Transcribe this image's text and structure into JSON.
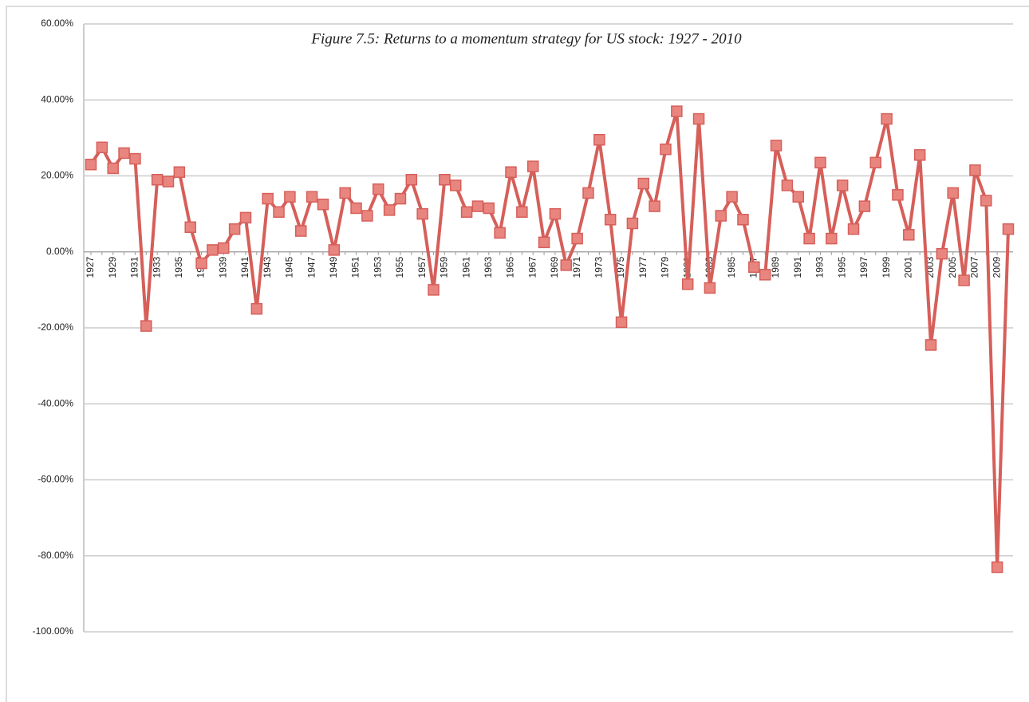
{
  "chart_data": {
    "type": "line",
    "title": "Figure 7.5: Returns to a momentum strategy for US stock: 1927 - 2010",
    "categories": [
      "1927",
      null,
      "1929",
      null,
      "1931",
      null,
      "1933",
      null,
      "1935",
      null,
      "1937",
      null,
      "1939",
      null,
      "1941",
      null,
      "1943",
      null,
      "1945",
      null,
      "1947",
      null,
      "1949",
      null,
      "1951",
      null,
      "1953",
      null,
      "1955",
      null,
      "1957",
      null,
      "1959",
      null,
      "1961",
      null,
      "1963",
      null,
      "1965",
      null,
      "1967",
      null,
      "1969",
      null,
      "1971",
      null,
      "1973",
      null,
      "1975",
      null,
      "1977",
      null,
      "1979",
      null,
      "1981",
      null,
      "1983",
      null,
      "1985",
      null,
      "1987",
      null,
      "1989",
      null,
      "1991",
      null,
      "1993",
      null,
      "1995",
      null,
      "1997",
      null,
      "1999",
      null,
      "2001",
      null,
      "2003",
      null,
      "2005",
      null,
      "2007",
      null,
      "2009",
      null
    ],
    "series": [
      {
        "color": "#d65f5a",
        "marker_color": "#e9857f",
        "values": [
          23,
          27.5,
          22,
          26,
          24.5,
          -19.5,
          19,
          18.5,
          21,
          6.5,
          -3,
          0.5,
          1,
          6,
          9,
          -15,
          14,
          10.5,
          14.5,
          5.5,
          14.5,
          12.5,
          0.5,
          15.5,
          11.5,
          9.5,
          16.5,
          11,
          14,
          19,
          10,
          -10,
          19,
          17.5,
          10.5,
          12,
          11.5,
          5,
          21,
          10.5,
          22.5,
          2.5,
          10,
          -3.5,
          3.5,
          15.5,
          29.5,
          8.5,
          -18.5,
          7.5,
          18,
          12,
          27,
          37,
          -8.5,
          35,
          -9.5,
          9.5,
          14.5,
          8.5,
          -4,
          -6,
          28,
          17.5,
          14.5,
          3.5,
          23.5,
          3.5,
          17.5,
          6,
          12,
          23.5,
          35,
          15,
          4.5,
          25.5,
          -24.5,
          -0.5,
          15.5,
          -7.5,
          21.5,
          13.5,
          -83,
          6
        ]
      }
    ],
    "ylim": [
      -100,
      60
    ],
    "yticks": [
      {
        "value": -100,
        "label": "-100.00%"
      },
      {
        "value": -80,
        "label": "-80.00%"
      },
      {
        "value": -60,
        "label": "-60.00%"
      },
      {
        "value": -40,
        "label": "-40.00%"
      },
      {
        "value": -20,
        "label": "-20.00%"
      },
      {
        "value": 0,
        "label": "0.00%"
      },
      {
        "value": 20,
        "label": "20.00%"
      },
      {
        "value": 40,
        "label": "40.00%"
      },
      {
        "value": 60,
        "label": "60.00%"
      }
    ],
    "grid": true
  }
}
